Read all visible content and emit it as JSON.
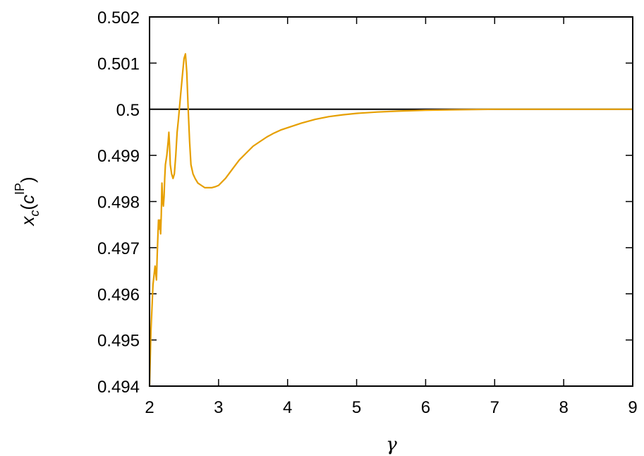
{
  "chart_data": {
    "type": "line",
    "title": "",
    "xlabel": "γ",
    "ylabel": {
      "base": "x",
      "sub": "c",
      "paren_open": "(",
      "inner": "c",
      "sup": "IP",
      "paren_close": ")"
    },
    "xlim": [
      2,
      9
    ],
    "ylim": [
      0.494,
      0.502
    ],
    "grid": false,
    "legend": "none",
    "x_ticks": [
      {
        "value": 2,
        "label": "2"
      },
      {
        "value": 3,
        "label": "3"
      },
      {
        "value": 4,
        "label": "4"
      },
      {
        "value": 5,
        "label": "5"
      },
      {
        "value": 6,
        "label": "6"
      },
      {
        "value": 7,
        "label": "7"
      },
      {
        "value": 8,
        "label": "8"
      },
      {
        "value": 9,
        "label": "9"
      }
    ],
    "y_ticks": [
      {
        "value": 0.494,
        "label": "0.494"
      },
      {
        "value": 0.495,
        "label": "0.495"
      },
      {
        "value": 0.496,
        "label": "0.496"
      },
      {
        "value": 0.497,
        "label": "0.497"
      },
      {
        "value": 0.498,
        "label": "0.498"
      },
      {
        "value": 0.499,
        "label": "0.499"
      },
      {
        "value": 0.5,
        "label": "0.5"
      },
      {
        "value": 0.501,
        "label": "0.501"
      },
      {
        "value": 0.502,
        "label": "0.502"
      }
    ],
    "reference_line": {
      "y": 0.5,
      "color": "#000000"
    },
    "series": [
      {
        "color": "#e69f00",
        "x": [
          2.0,
          2.02,
          2.05,
          2.08,
          2.1,
          2.11,
          2.12,
          2.13,
          2.14,
          2.15,
          2.16,
          2.17,
          2.18,
          2.19,
          2.2,
          2.21,
          2.22,
          2.23,
          2.25,
          2.27,
          2.28,
          2.29,
          2.3,
          2.32,
          2.34,
          2.36,
          2.38,
          2.4,
          2.42,
          2.45,
          2.48,
          2.5,
          2.52,
          2.54,
          2.56,
          2.58,
          2.6,
          2.63,
          2.66,
          2.7,
          2.75,
          2.8,
          2.85,
          2.9,
          2.95,
          3.0,
          3.1,
          3.2,
          3.3,
          3.4,
          3.5,
          3.6,
          3.7,
          3.8,
          3.9,
          4.0,
          4.2,
          4.4,
          4.6,
          4.8,
          5.0,
          5.3,
          5.6,
          6.0,
          6.5,
          7.0,
          7.5,
          8.0,
          8.5,
          9.0
        ],
        "y": [
          0.494,
          0.4952,
          0.4962,
          0.4966,
          0.4963,
          0.4968,
          0.4972,
          0.4976,
          0.4974,
          0.4976,
          0.4973,
          0.4977,
          0.4984,
          0.498,
          0.4979,
          0.4981,
          0.4985,
          0.4988,
          0.499,
          0.4993,
          0.4995,
          0.4992,
          0.4988,
          0.4986,
          0.4985,
          0.4986,
          0.499,
          0.4995,
          0.4998,
          0.5003,
          0.5008,
          0.5011,
          0.5012,
          0.5008,
          0.5,
          0.4993,
          0.4988,
          0.4986,
          0.4985,
          0.4984,
          0.49835,
          0.4983,
          0.4983,
          0.4983,
          0.49832,
          0.49835,
          0.4985,
          0.4987,
          0.4989,
          0.49905,
          0.4992,
          0.4993,
          0.4994,
          0.49948,
          0.49955,
          0.4996,
          0.4997,
          0.49978,
          0.49984,
          0.49988,
          0.49991,
          0.49994,
          0.49996,
          0.49998,
          0.49999,
          0.5,
          0.5,
          0.5,
          0.5,
          0.5
        ]
      }
    ]
  }
}
